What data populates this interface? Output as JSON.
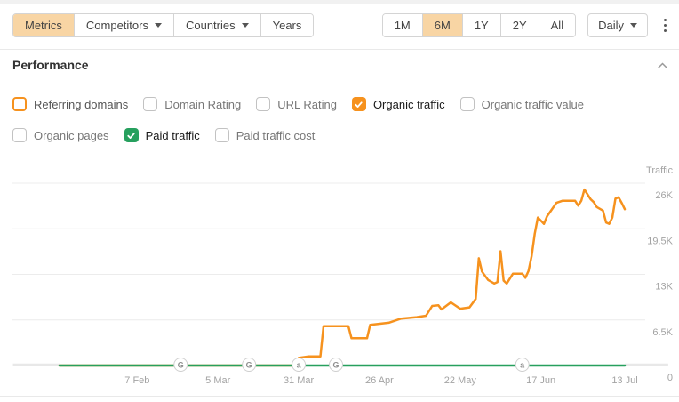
{
  "toolbar": {
    "left_tabs": [
      {
        "label": "Metrics",
        "selected": true,
        "has_caret": false
      },
      {
        "label": "Competitors",
        "selected": false,
        "has_caret": true
      },
      {
        "label": "Countries",
        "selected": false,
        "has_caret": true
      },
      {
        "label": "Years",
        "selected": false,
        "has_caret": false
      }
    ],
    "range_buttons": [
      {
        "label": "1M",
        "selected": false
      },
      {
        "label": "6M",
        "selected": true
      },
      {
        "label": "1Y",
        "selected": false
      },
      {
        "label": "2Y",
        "selected": false
      },
      {
        "label": "All",
        "selected": false
      }
    ],
    "granularity": {
      "label": "Daily"
    },
    "icons": {
      "caret_down": "triangle-down",
      "more_menu": "kebab-vertical"
    }
  },
  "performance": {
    "title": "Performance",
    "collapse_icon": "chevron-up",
    "metrics_row1": [
      {
        "label": "Referring domains",
        "checked": false,
        "style": "orange-outline",
        "color": "#f6921e"
      },
      {
        "label": "Domain Rating",
        "checked": false,
        "style": "plain"
      },
      {
        "label": "URL Rating",
        "checked": false,
        "style": "plain"
      },
      {
        "label": "Organic traffic",
        "checked": true,
        "style": "filled",
        "color": "#f6921e"
      },
      {
        "label": "Organic traffic value",
        "checked": false,
        "style": "plain"
      }
    ],
    "metrics_row2": [
      {
        "label": "Organic pages",
        "checked": false,
        "style": "plain"
      },
      {
        "label": "Paid traffic",
        "checked": true,
        "style": "filled",
        "color": "#27a05e"
      },
      {
        "label": "Paid traffic cost",
        "checked": false,
        "style": "plain"
      }
    ]
  },
  "chart_data": {
    "type": "line",
    "title": "Performance",
    "ylabel": "Traffic",
    "ylim": [
      0,
      26000
    ],
    "grid": true,
    "legend_position": "none",
    "x_unit": "days_from_range_start",
    "x_range_days": [
      0,
      182
    ],
    "xlim_days": [
      -15,
      196
    ],
    "y_ticks": [
      {
        "value": 26000,
        "label": "26K"
      },
      {
        "value": 19500,
        "label": "19.5K"
      },
      {
        "value": 13000,
        "label": "13K"
      },
      {
        "value": 6500,
        "label": "6.5K"
      },
      {
        "value": 0,
        "label": "0"
      }
    ],
    "x_ticks": [
      {
        "day": 25,
        "label": "7 Feb"
      },
      {
        "day": 51,
        "label": "5 Mar"
      },
      {
        "day": 77,
        "label": "31 Mar"
      },
      {
        "day": 103,
        "label": "26 Apr"
      },
      {
        "day": 129,
        "label": "22 May"
      },
      {
        "day": 155,
        "label": "17 Jun"
      },
      {
        "day": 182,
        "label": "13 Jul"
      }
    ],
    "series": [
      {
        "name": "Organic traffic",
        "color": "#f6921e",
        "points": [
          [
            0,
            0
          ],
          [
            67,
            0
          ],
          [
            76,
            0
          ],
          [
            77,
            1100
          ],
          [
            80,
            1300
          ],
          [
            84,
            1300
          ],
          [
            85,
            5600
          ],
          [
            93,
            5600
          ],
          [
            94,
            3900
          ],
          [
            99,
            3900
          ],
          [
            100,
            5800
          ],
          [
            106,
            6100
          ],
          [
            110,
            6700
          ],
          [
            115,
            6900
          ],
          [
            118,
            7100
          ],
          [
            120,
            8500
          ],
          [
            122,
            8600
          ],
          [
            123,
            8000
          ],
          [
            126,
            9000
          ],
          [
            127,
            8700
          ],
          [
            129,
            8100
          ],
          [
            132,
            8300
          ],
          [
            134,
            9500
          ],
          [
            135,
            15300
          ],
          [
            136,
            13400
          ],
          [
            138,
            12200
          ],
          [
            140,
            11700
          ],
          [
            141,
            11900
          ],
          [
            142,
            16300
          ],
          [
            143,
            12100
          ],
          [
            144,
            11700
          ],
          [
            146,
            13100
          ],
          [
            149,
            13100
          ],
          [
            150,
            12500
          ],
          [
            151,
            13500
          ],
          [
            152,
            15600
          ],
          [
            153,
            18800
          ],
          [
            154,
            21100
          ],
          [
            156,
            20200
          ],
          [
            157,
            21300
          ],
          [
            160,
            23200
          ],
          [
            162,
            23500
          ],
          [
            166,
            23500
          ],
          [
            167,
            22800
          ],
          [
            168,
            23500
          ],
          [
            169,
            25100
          ],
          [
            171,
            23700
          ],
          [
            172,
            23300
          ],
          [
            173,
            22600
          ],
          [
            175,
            22100
          ],
          [
            176,
            20400
          ],
          [
            177,
            20200
          ],
          [
            178,
            21100
          ],
          [
            179,
            23800
          ],
          [
            180,
            24000
          ],
          [
            181,
            23200
          ],
          [
            182,
            22300
          ]
        ]
      },
      {
        "name": "Paid traffic",
        "color": "#27a05e",
        "points": [
          [
            0,
            0
          ],
          [
            182,
            0
          ]
        ]
      }
    ],
    "events": [
      {
        "day": 39,
        "label": "G"
      },
      {
        "day": 61,
        "label": "G"
      },
      {
        "day": 77,
        "label": "a"
      },
      {
        "day": 89,
        "label": "G"
      },
      {
        "day": 149,
        "label": "a"
      }
    ],
    "no_data_extensions_days": [
      [
        -15,
        0
      ],
      [
        182,
        196
      ]
    ]
  }
}
